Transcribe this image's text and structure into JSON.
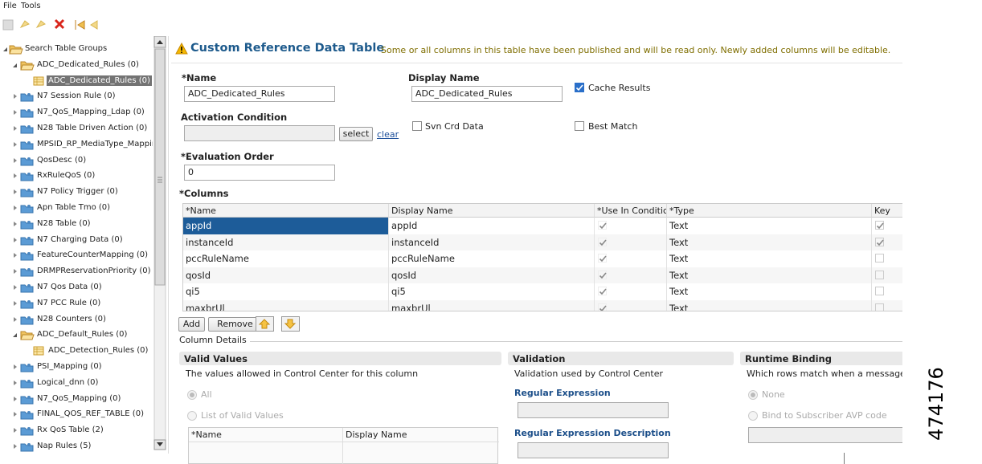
{
  "menu": [
    "File",
    "Tools"
  ],
  "tree": {
    "selected_index": 2,
    "items": [
      {
        "label": "Search Table Groups",
        "level": 0,
        "expanded": true
      },
      {
        "label": "ADC_Dedicated_Rules (0)",
        "level": 1,
        "expanded": true
      },
      {
        "label": "ADC_Dedicated_Rules (0)",
        "level": 2
      },
      {
        "label": "N7 Session Rule (0)",
        "level": 1,
        "expanded": false
      },
      {
        "label": "N7_QoS_Mapping_Ldap (0)",
        "level": 1,
        "expanded": false
      },
      {
        "label": "N28 Table Driven Action (0)",
        "level": 1,
        "expanded": false
      },
      {
        "label": "MPSID_RP_MediaType_Mapping",
        "level": 1,
        "expanded": false
      },
      {
        "label": "QosDesc (0)",
        "level": 1,
        "expanded": false
      },
      {
        "label": "RxRuleQoS (0)",
        "level": 1,
        "expanded": false
      },
      {
        "label": "N7 Policy Trigger (0)",
        "level": 1,
        "expanded": false
      },
      {
        "label": "Apn Table Tmo (0)",
        "level": 1,
        "expanded": false
      },
      {
        "label": "N28 Table (0)",
        "level": 1,
        "expanded": false
      },
      {
        "label": "N7 Charging Data (0)",
        "level": 1,
        "expanded": false
      },
      {
        "label": "FeatureCounterMapping (0)",
        "level": 1,
        "expanded": false
      },
      {
        "label": "DRMPReservationPriority (0)",
        "level": 1,
        "expanded": false
      },
      {
        "label": "N7 Qos Data (0)",
        "level": 1,
        "expanded": false
      },
      {
        "label": "N7 PCC Rule (0)",
        "level": 1,
        "expanded": false
      },
      {
        "label": "N28 Counters (0)",
        "level": 1,
        "expanded": false
      },
      {
        "label": "ADC_Default_Rules (0)",
        "level": 1,
        "expanded": true
      },
      {
        "label": "ADC_Detection_Rules (0)",
        "level": 2
      },
      {
        "label": "PSI_Mapping (0)",
        "level": 1,
        "expanded": false
      },
      {
        "label": "Logical_dnn (0)",
        "level": 1,
        "expanded": false
      },
      {
        "label": "N7_QoS_Mapping (0)",
        "level": 1,
        "expanded": false
      },
      {
        "label": "FINAL_QOS_REF_TABLE (0)",
        "level": 1,
        "expanded": false
      },
      {
        "label": "Rx QoS Table (2)",
        "level": 1,
        "expanded": false
      },
      {
        "label": "Nap Rules (5)",
        "level": 1,
        "expanded": false
      }
    ]
  },
  "header": {
    "title": "Custom Reference Data Table",
    "message": "Some or all columns in this table have been published and will be read only.  Newly added columns will be editable."
  },
  "form": {
    "name_label": "*Name",
    "name_value": "ADC_Dedicated_Rules",
    "display_name_label": "Display Name",
    "display_name_value": "ADC_Dedicated_Rules",
    "cache_results": {
      "label": "Cache Results",
      "checked": true
    },
    "activation_label": "Activation Condition",
    "select_button": "select",
    "clear_link": "clear",
    "svn_crd_data": {
      "label": "Svn Crd Data",
      "checked": false
    },
    "best_match": {
      "label": "Best Match",
      "checked": false
    },
    "evaluation_label": "*Evaluation Order",
    "evaluation_value": "0"
  },
  "columns": {
    "label": "*Columns",
    "headers": [
      "*Name",
      "Display Name",
      "*Use In Conditic",
      "*Type",
      "Key"
    ],
    "selected_row": 0,
    "rows": [
      {
        "name": "appId",
        "display": "appId",
        "use_in_condition": true,
        "type": "Text",
        "key": true
      },
      {
        "name": "instanceId",
        "display": "instanceId",
        "use_in_condition": true,
        "type": "Text",
        "key": true
      },
      {
        "name": "pccRuleName",
        "display": "pccRuleName",
        "use_in_condition": true,
        "type": "Text",
        "key": false
      },
      {
        "name": "qosId",
        "display": "qosId",
        "use_in_condition": true,
        "type": "Text",
        "key": false
      },
      {
        "name": "qi5",
        "display": "qi5",
        "use_in_condition": true,
        "type": "Text",
        "key": false
      },
      {
        "name": "maxbrUl",
        "display": "maxbrUl",
        "use_in_condition": true,
        "type": "Text",
        "key": false
      }
    ],
    "buttons": [
      "Add",
      "Remove"
    ]
  },
  "column_details": {
    "label": "Column Details",
    "valid_values": {
      "title": "Valid Values",
      "description": "The values allowed in Control Center for this column",
      "options": [
        {
          "label": "All",
          "checked": true
        },
        {
          "label": "List of Valid Values",
          "checked": false
        }
      ],
      "headers": [
        "*Name",
        "Display Name"
      ]
    },
    "validation": {
      "title": "Validation",
      "description": "Validation used by Control Center",
      "fields": [
        "Regular Expression",
        "Regular Expression Description"
      ]
    },
    "runtime_binding": {
      "title": "Runtime Binding",
      "description": "Which rows match when a message",
      "options": [
        {
          "label": "None",
          "checked": true
        },
        {
          "label": "Bind to Subscriber AVP code",
          "checked": false
        }
      ]
    }
  },
  "figure_id": "474176"
}
